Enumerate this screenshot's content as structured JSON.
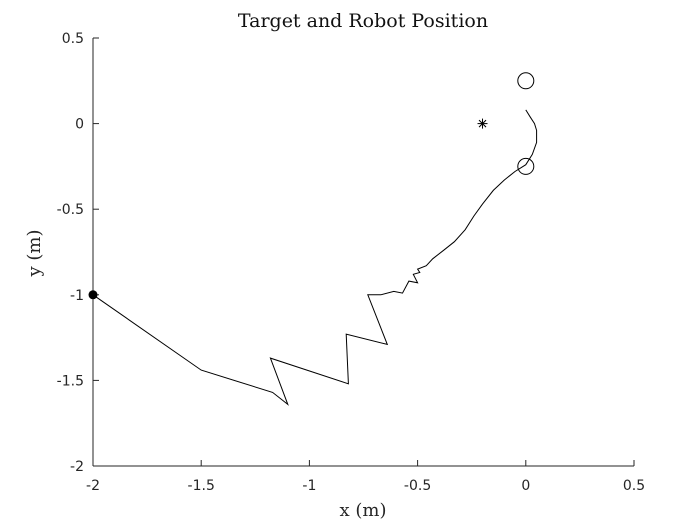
{
  "chart_data": {
    "type": "line",
    "title": "Target and Robot Position",
    "xlabel": "x (m)",
    "ylabel": "y (m)",
    "xlim": [
      -2,
      0.5
    ],
    "ylim": [
      -2,
      0.5
    ],
    "xticks": [
      -2,
      -1.5,
      -1,
      -0.5,
      0,
      0.5
    ],
    "yticks": [
      0.5,
      0,
      -0.5,
      -1,
      -1.5,
      -2
    ],
    "xtick_labels": [
      "-2",
      "-1.5",
      "-1",
      "-0.5",
      "0",
      "0.5"
    ],
    "ytick_labels": [
      "0.5",
      "0",
      "-0.5",
      "-1",
      "-1.5",
      "-2"
    ],
    "grid": false,
    "series": [
      {
        "marker": "line",
        "color": "#000000",
        "x": [
          -2.0,
          -1.5,
          -1.17,
          -1.1,
          -1.18,
          -0.82,
          -0.83,
          -0.64,
          -0.73,
          -0.67,
          -0.61,
          -0.57,
          -0.54,
          -0.5,
          -0.52,
          -0.49,
          -0.5,
          -0.46,
          -0.43,
          -0.38,
          -0.33,
          -0.28,
          -0.24,
          -0.2,
          -0.15,
          -0.1,
          -0.05,
          0.0,
          0.03,
          0.05,
          0.05,
          0.04,
          0.02,
          0.0
        ],
        "y": [
          -1.0,
          -1.44,
          -1.57,
          -1.64,
          -1.37,
          -1.52,
          -1.23,
          -1.29,
          -1.0,
          -1.0,
          -0.98,
          -0.99,
          -0.92,
          -0.93,
          -0.88,
          -0.87,
          -0.85,
          -0.83,
          -0.79,
          -0.74,
          -0.69,
          -0.62,
          -0.54,
          -0.47,
          -0.39,
          -0.33,
          -0.28,
          -0.24,
          -0.18,
          -0.11,
          -0.04,
          0.0,
          0.04,
          0.08
        ]
      },
      {
        "marker": "circle-open",
        "color": "#000000",
        "x": [
          0.0,
          0.0
        ],
        "y": [
          0.25,
          -0.25
        ]
      },
      {
        "marker": "asterisk",
        "color": "#000000",
        "x": [
          -0.2
        ],
        "y": [
          0.0
        ]
      },
      {
        "marker": "dot-filled",
        "color": "#000000",
        "x": [
          -2.0
        ],
        "y": [
          -1.0
        ]
      }
    ]
  }
}
